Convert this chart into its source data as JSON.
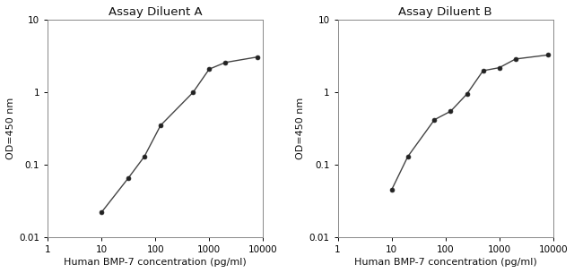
{
  "chart_A": {
    "title": "Assay Diluent A",
    "x": [
      10,
      31.25,
      62.5,
      125,
      500,
      1000,
      2000,
      8000
    ],
    "y": [
      0.022,
      0.065,
      0.13,
      0.35,
      1.0,
      2.1,
      2.6,
      3.1
    ],
    "xlabel": "Human BMP-7 concentration (pg/ml)",
    "ylabel": "OD=450 nm",
    "xlim": [
      1,
      10000
    ],
    "ylim": [
      0.01,
      10
    ],
    "xticks": [
      1,
      10,
      100,
      1000,
      10000
    ],
    "yticks": [
      0.01,
      0.1,
      1,
      10
    ]
  },
  "chart_B": {
    "title": "Assay Diluent B",
    "x": [
      10,
      20,
      62.5,
      125,
      250,
      500,
      1000,
      2000,
      8000
    ],
    "y": [
      0.045,
      0.13,
      0.42,
      0.55,
      0.95,
      2.0,
      2.2,
      2.9,
      3.3
    ],
    "xlabel": "Human BMP-7 concentration (pg/ml)",
    "ylabel": "OD=450 nm",
    "xlim": [
      1,
      10000
    ],
    "ylim": [
      0.01,
      10
    ],
    "xticks": [
      1,
      10,
      100,
      1000,
      10000
    ],
    "yticks": [
      0.01,
      0.1,
      1,
      10
    ]
  },
  "line_color": "#444444",
  "marker_color": "#222222",
  "bg_color": "#ffffff",
  "title_fontsize": 9.5,
  "label_fontsize": 8,
  "tick_fontsize": 7.5,
  "figsize": [
    6.4,
    3.05
  ],
  "dpi": 100
}
